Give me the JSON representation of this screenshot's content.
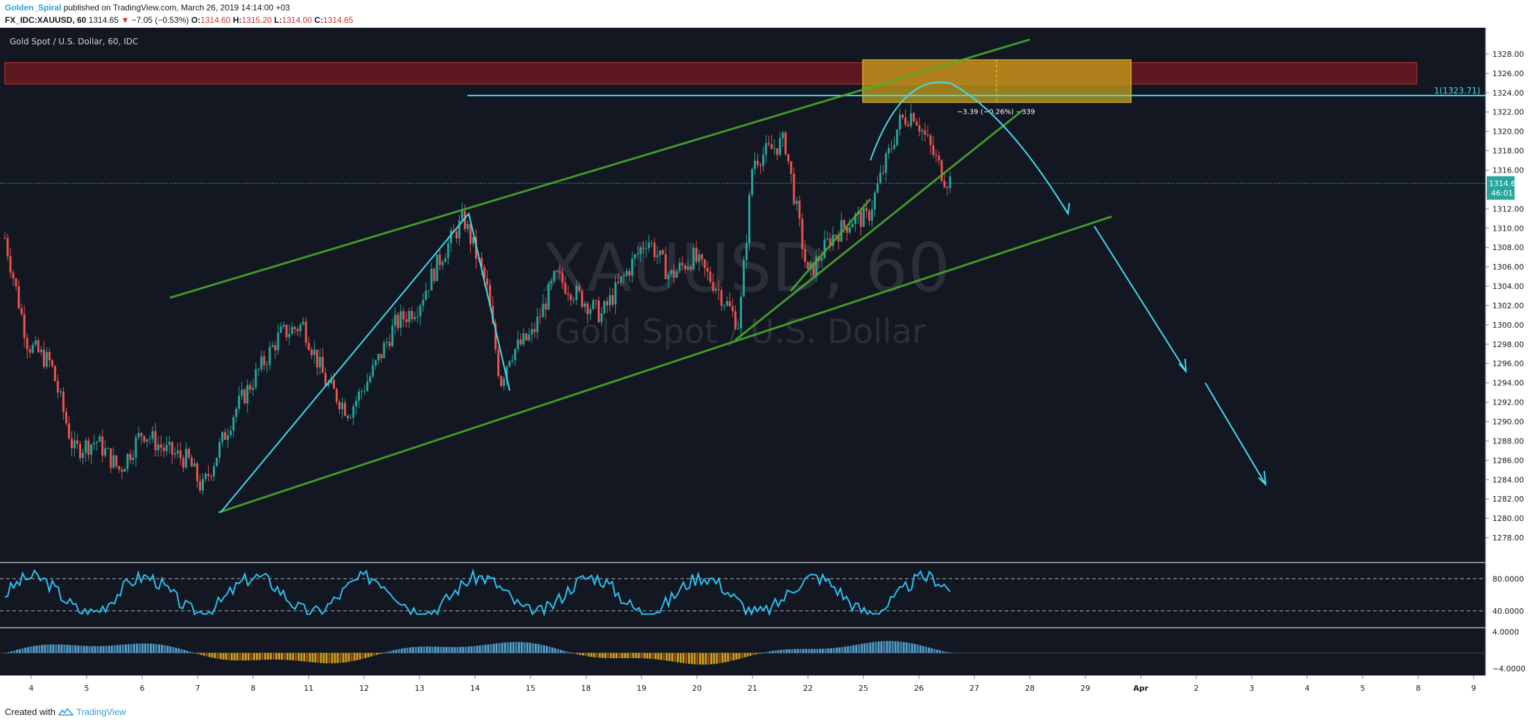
{
  "header": {
    "author": "Golden_Spiral",
    "published": "published on TradingView.com, March 26, 2019 14:14:00 +03",
    "symbol": "FX_IDC:XAUUSD, 60",
    "price": "1314.65",
    "change_arrow": "▼",
    "change": "−7.05 (−0.53%)",
    "o_label": "O:",
    "o_val": "1314.60",
    "h_label": "H:",
    "h_val": "1315.20",
    "l_label": "L:",
    "l_val": "1314.00",
    "c_label": "C:",
    "c_val": "1314.65"
  },
  "footer": {
    "created": "Created with",
    "brand": "TradingView",
    "logo_icon": "tradingview-logo-icon"
  },
  "chart_data": {
    "type": "candlestick",
    "title": "Gold Spot / U.S. Dollar, 60, IDC",
    "watermark_symbol": "XAUUSD, 60",
    "watermark_name": "Gold Spot / U.S. Dollar",
    "colors": {
      "background": "#131722",
      "up": "#26a69a",
      "down": "#ef5350",
      "grid": "#1e222d",
      "trend_green": "#4caf2d",
      "projection": "#3fe0f0",
      "supply_zone": "#b71c1c",
      "target_box": "#c9a21b",
      "rsi": "#29c5f6"
    },
    "ylim": [
      1277,
      1329
    ],
    "y_ticks": [
      "1328.00",
      "1326.00",
      "1324.00",
      "1322.00",
      "1320.00",
      "1318.00",
      "1316.00",
      "1314.65",
      "1312.00",
      "1310.00",
      "1308.00",
      "1306.00",
      "1304.00",
      "1302.00",
      "1300.00",
      "1298.00",
      "1296.00",
      "1294.00",
      "1292.00",
      "1290.00",
      "1288.00",
      "1286.00",
      "1284.00",
      "1282.00",
      "1280.00",
      "1278.00"
    ],
    "x_ticks": [
      "4",
      "5",
      "6",
      "7",
      "8",
      "11",
      "12",
      "13",
      "14",
      "15",
      "18",
      "19",
      "20",
      "21",
      "22",
      "25",
      "26",
      "27",
      "28",
      "29",
      "Apr",
      "2",
      "3",
      "4",
      "5",
      "8",
      "9"
    ],
    "last_price": "1314.65",
    "countdown": "46:01",
    "price_points": [
      [
        0,
        1309
      ],
      [
        0.5,
        1298
      ],
      [
        1,
        1296
      ],
      [
        1.5,
        1287
      ],
      [
        2,
        1288
      ],
      [
        2.5,
        1285
      ],
      [
        3,
        1289
      ],
      [
        3.5,
        1287
      ],
      [
        4,
        1286
      ],
      [
        4.3,
        1283
      ],
      [
        5,
        1291
      ],
      [
        6,
        1299
      ],
      [
        6.5,
        1300
      ],
      [
        7,
        1294
      ],
      [
        7.5,
        1291
      ],
      [
        8,
        1295
      ],
      [
        8.5,
        1300
      ],
      [
        9,
        1302
      ],
      [
        9.5,
        1307
      ],
      [
        10,
        1311
      ],
      [
        10.5,
        1304
      ],
      [
        10.8,
        1294
      ],
      [
        11,
        1297
      ],
      [
        11.5,
        1299
      ],
      [
        12,
        1305
      ],
      [
        13,
        1301
      ],
      [
        14,
        1309
      ],
      [
        14.5,
        1305
      ],
      [
        15,
        1307
      ],
      [
        15.5,
        1304
      ],
      [
        16,
        1300
      ],
      [
        16.3,
        1317
      ],
      [
        17,
        1319
      ],
      [
        17.5,
        1305
      ],
      [
        18,
        1309
      ],
      [
        18.5,
        1311
      ],
      [
        18.8,
        1311
      ],
      [
        19,
        1314
      ],
      [
        19.5,
        1321
      ],
      [
        19.8,
        1322
      ],
      [
        20,
        1320
      ],
      [
        20.5,
        1315
      ]
    ],
    "rsi": {
      "levels": [
        80,
        40
      ],
      "tick_labels": [
        "80.0000",
        "40.0000"
      ]
    },
    "histogram": {
      "tick_labels": [
        "4.0000",
        "−4.0000"
      ]
    },
    "annotations": {
      "horizontal_level": "1(1323.71)",
      "measure_label": "−3.39 (−0.26%) −339"
    }
  }
}
